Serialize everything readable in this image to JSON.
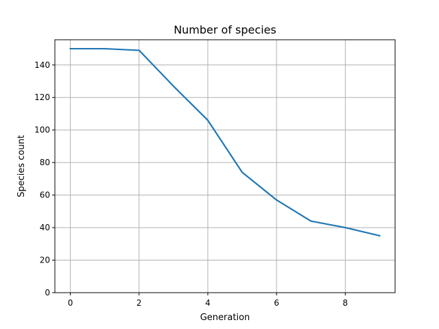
{
  "chart_data": {
    "type": "line",
    "title": "Number of species",
    "xlabel": "Generation",
    "ylabel": "Species count",
    "x": [
      0,
      1,
      2,
      3,
      4,
      5,
      6,
      7,
      8,
      9
    ],
    "series": [
      {
        "values": [
          150,
          150,
          149,
          127,
          106,
          74,
          57,
          44,
          40,
          35
        ],
        "color": "#1f77b4"
      }
    ],
    "xlim": [
      -0.45,
      9.45
    ],
    "ylim": [
      0,
      155.5
    ],
    "xticks": [
      0,
      2,
      4,
      6,
      8
    ],
    "yticks": [
      0,
      20,
      40,
      60,
      80,
      100,
      120,
      140
    ],
    "grid": true
  }
}
